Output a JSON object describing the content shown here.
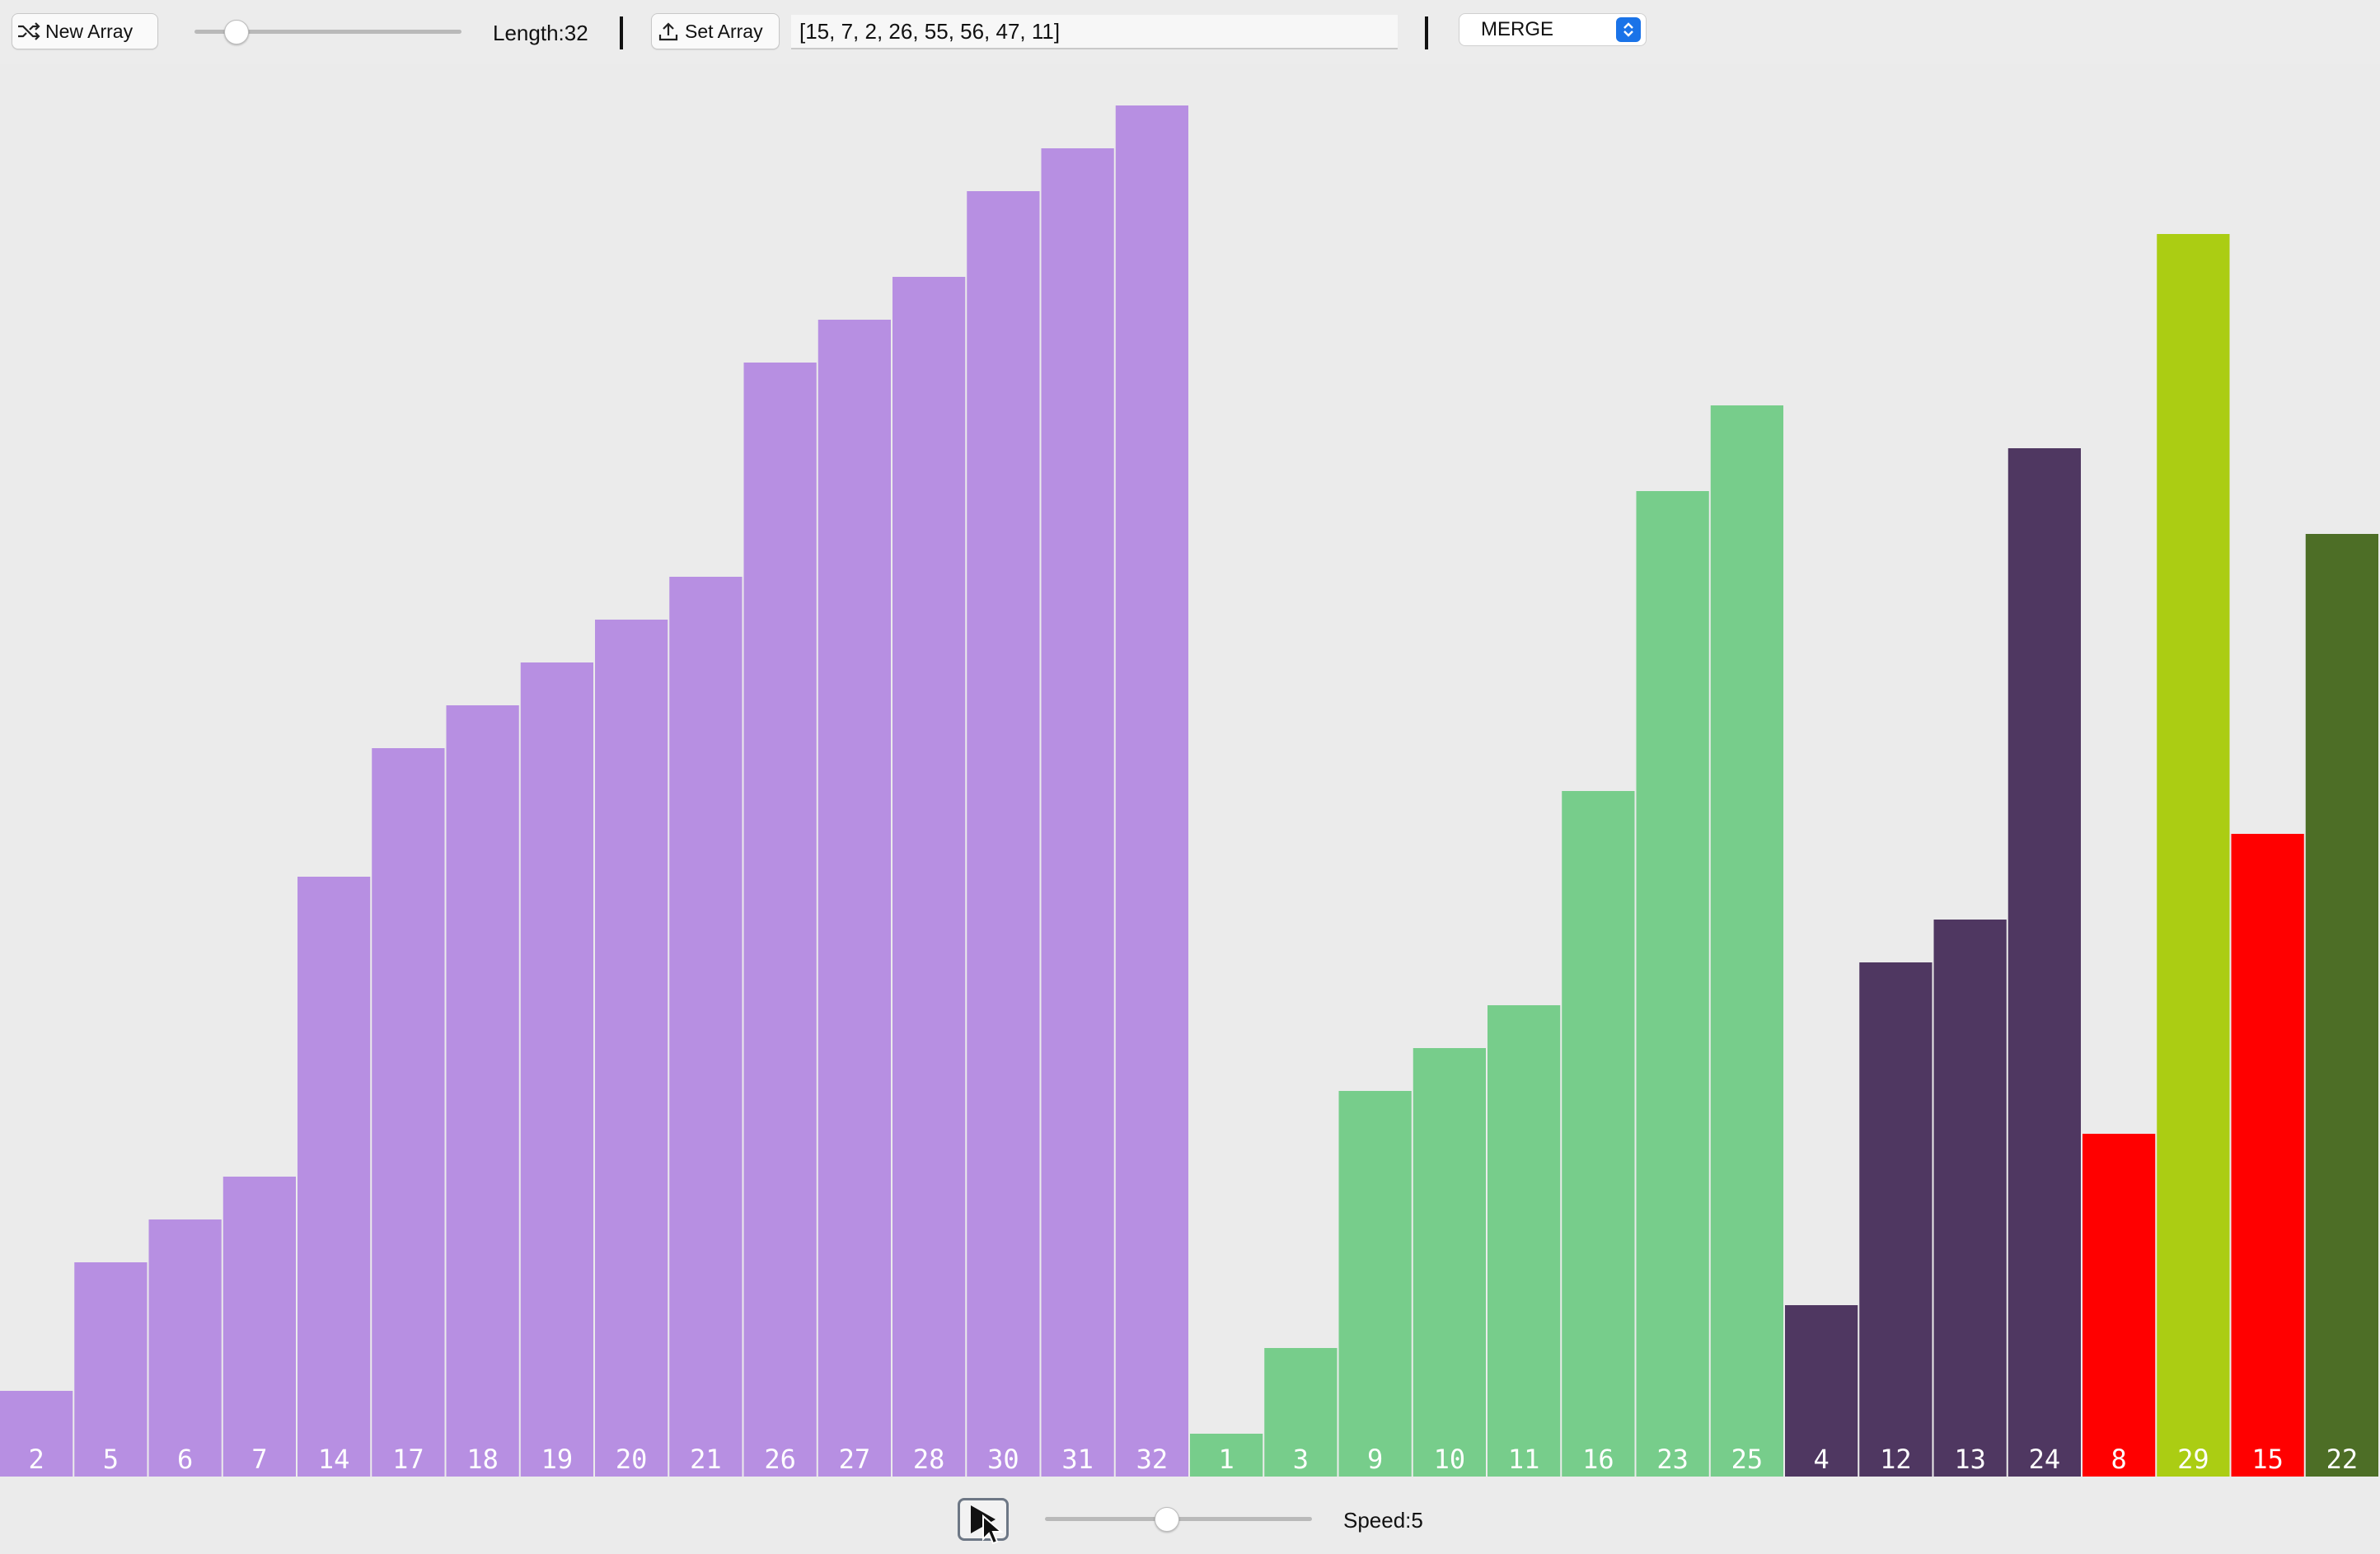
{
  "toolbar": {
    "new_array_label": "New Array",
    "length_label": "Length:32",
    "length_slider_value": 0.12,
    "set_array_label": "Set Array",
    "array_input_value": "[15, 7, 2, 26, 55, 56, 47, 11]",
    "algorithm_selected": "MERGE"
  },
  "controls": {
    "speed_label": "Speed:5",
    "speed_slider_value": 0.45
  },
  "icons": {
    "new_array": "shuffle-icon",
    "set_array": "upload-icon",
    "select": "updown-arrows-icon",
    "play": "play-icon",
    "cursor": "mouse-pointer-icon"
  },
  "chart_data": {
    "type": "bar",
    "title": "",
    "xlabel": "",
    "ylabel": "",
    "ylim": [
      0,
      32
    ],
    "values": [
      2,
      5,
      6,
      7,
      14,
      17,
      18,
      19,
      20,
      21,
      26,
      27,
      28,
      30,
      31,
      32,
      1,
      3,
      9,
      10,
      11,
      16,
      23,
      25,
      4,
      12,
      13,
      24,
      8,
      29,
      15,
      22
    ],
    "colors": [
      "#b78fe2",
      "#b78fe2",
      "#b78fe2",
      "#b78fe2",
      "#b78fe2",
      "#b78fe2",
      "#b78fe2",
      "#b78fe2",
      "#b78fe2",
      "#b78fe2",
      "#b78fe2",
      "#b78fe2",
      "#b78fe2",
      "#b78fe2",
      "#b78fe2",
      "#b78fe2",
      "#77cd8b",
      "#77cd8b",
      "#77cd8b",
      "#77cd8b",
      "#77cd8b",
      "#77cd8b",
      "#77cd8b",
      "#77cd8b",
      "#4f3761",
      "#4f3761",
      "#4f3761",
      "#4f3761",
      "#ff0000",
      "#abcd13",
      "#ff0000",
      "#4d6e26"
    ]
  }
}
